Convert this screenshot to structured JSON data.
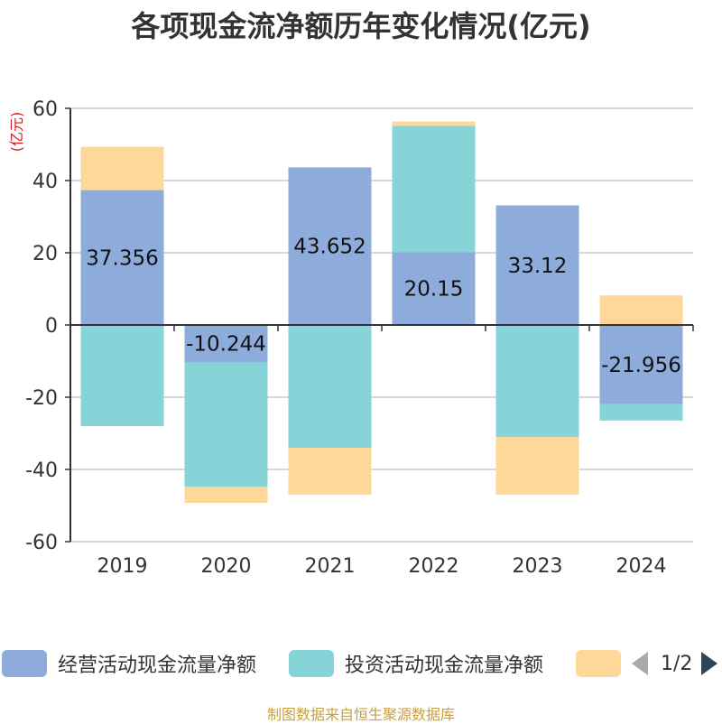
{
  "title": "各项现金流净额历年变化情况(亿元)",
  "source": "制图数据来自恒生聚源数据库",
  "colors": {
    "operating": "#8eacdb",
    "investing": "#86d4d8",
    "financing": "#fdd898",
    "axis": "#333333",
    "grid": "#cccccc",
    "unit": "#d61a1a"
  },
  "legend": {
    "items": [
      {
        "label": "经营活动现金流量净额",
        "color": "#8eacdb"
      },
      {
        "label": "投资活动现金流量净额",
        "color": "#86d4d8"
      },
      {
        "label": "",
        "color": "#fdd898"
      }
    ],
    "pager": "1/2",
    "prev_icon": "triangle-left-icon",
    "next_icon": "triangle-right-icon"
  },
  "chart_data": {
    "type": "bar",
    "stacked": true,
    "categories": [
      "2019",
      "2020",
      "2021",
      "2022",
      "2023",
      "2024"
    ],
    "ylabel": "(亿元)",
    "ylim": [
      -60,
      60
    ],
    "yticks": [
      60,
      40,
      20,
      0,
      -20,
      -40,
      -60
    ],
    "grid": true,
    "legend_position": "bottom",
    "series": [
      {
        "name": "经营活动现金流量净额",
        "values": [
          37.356,
          -10.244,
          43.652,
          20.15,
          33.12,
          -21.956
        ],
        "labels": [
          "37.356",
          "-10.244",
          "43.652",
          "20.15",
          "33.12",
          "-21.956"
        ]
      },
      {
        "name": "投资活动现金流量净额",
        "values": [
          -28,
          -34.5,
          -34,
          35,
          -31,
          -4.5
        ]
      },
      {
        "name": "",
        "values": [
          12,
          -4.5,
          -13,
          1.2,
          -16,
          8.2
        ]
      }
    ]
  }
}
